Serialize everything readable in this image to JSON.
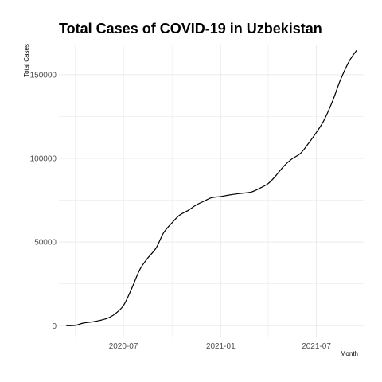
{
  "chart_data": {
    "type": "line",
    "title": "Total Cases of COVID-19 in Uzbekistan",
    "xlabel": "Month",
    "ylabel": "Total Cases",
    "x_ticks": [
      "2020-07",
      "2021-01",
      "2021-07"
    ],
    "y_ticks": [
      0,
      50000,
      100000,
      150000
    ],
    "ylim": [
      -7000,
      168000
    ],
    "xlim": [
      "2020-03-01",
      "2021-09-30"
    ],
    "grid": true,
    "legend": "none",
    "colors": {
      "line": "#000000",
      "grid": "#ebebeb",
      "tick_text": "#4d4d4d"
    },
    "series": [
      {
        "x": [
          "2020-03-15",
          "2020-04-01",
          "2020-04-15",
          "2020-05-01",
          "2020-05-15",
          "2020-06-01",
          "2020-06-15",
          "2020-07-01",
          "2020-07-15",
          "2020-08-01",
          "2020-08-15",
          "2020-09-01",
          "2020-09-15",
          "2020-10-01",
          "2020-10-15",
          "2020-11-01",
          "2020-11-15",
          "2020-12-01",
          "2020-12-15",
          "2021-01-01",
          "2021-01-15",
          "2021-02-01",
          "2021-02-15",
          "2021-03-01",
          "2021-03-15",
          "2021-04-01",
          "2021-04-15",
          "2021-05-01",
          "2021-05-15",
          "2021-06-01",
          "2021-06-15",
          "2021-07-01",
          "2021-07-15",
          "2021-08-01",
          "2021-08-15",
          "2021-09-01",
          "2021-09-15"
        ],
        "values": [
          0,
          200,
          1500,
          2200,
          3000,
          4500,
          7000,
          12000,
          21000,
          33500,
          40000,
          46500,
          55500,
          61500,
          66000,
          69000,
          72000,
          74500,
          76500,
          77200,
          78000,
          78800,
          79300,
          80000,
          82000,
          85000,
          89500,
          95500,
          99500,
          103000,
          108500,
          115500,
          122500,
          134500,
          146500,
          158000,
          164500
        ]
      }
    ]
  }
}
